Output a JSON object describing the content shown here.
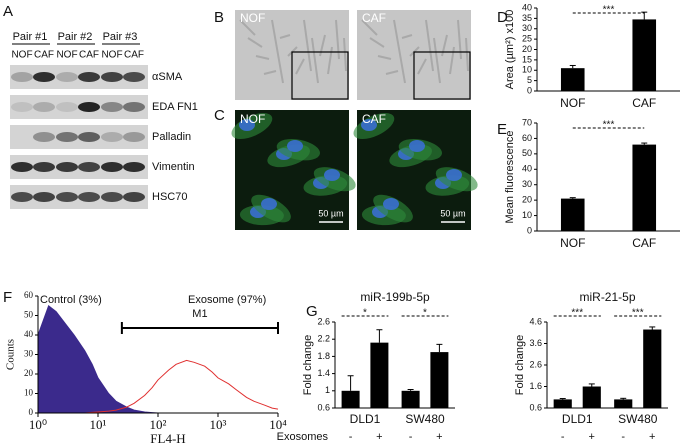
{
  "panel_labels": [
    "A",
    "B",
    "C",
    "D",
    "E",
    "F",
    "G"
  ],
  "blot": {
    "pairs": [
      "Pair #1",
      "Pair #2",
      "Pair #3"
    ],
    "lanes": [
      "NOF",
      "CAF",
      "NOF",
      "CAF",
      "NOF",
      "CAF"
    ],
    "bands": [
      "αSMA",
      "EDA FN1",
      "Palladin",
      "Vimentin",
      "HSC70"
    ]
  },
  "micrographs": {
    "bright_field": [
      "NOF",
      "CAF"
    ],
    "fluorescence": [
      "NOF",
      "CAF"
    ],
    "scale_bar": "50 µm"
  },
  "chart_data": [
    {
      "type": "bar",
      "y_label": "Area (µm²) x100",
      "categories": [
        "NOF",
        "CAF"
      ],
      "values": [
        11,
        34.5
      ],
      "errors": [
        1.3,
        3.5
      ],
      "color": "#000000",
      "ylim": [
        0,
        40
      ],
      "yticks": [
        0,
        5,
        10,
        15,
        20,
        25,
        30,
        35,
        40
      ],
      "significance": "***"
    },
    {
      "type": "bar",
      "y_label": "Mean fluorescence",
      "categories": [
        "NOF",
        "CAF"
      ],
      "values": [
        21,
        56
      ],
      "errors": [
        0.6,
        1
      ],
      "color": "#000000",
      "ylim": [
        0,
        70
      ],
      "yticks": [
        0,
        10,
        20,
        30,
        40,
        50,
        60,
        70
      ],
      "significance": "***"
    },
    {
      "type": "area",
      "x_label": "FL4-H",
      "y_label": "Counts",
      "xscale": "log",
      "x": [
        1,
        1.5,
        2,
        3,
        4,
        6,
        8,
        10,
        15,
        20,
        30,
        40,
        60,
        80,
        100,
        150,
        200,
        300,
        400,
        600,
        800,
        1000,
        1500,
        2000,
        3000,
        4000,
        6000,
        8000,
        10000
      ],
      "series": [
        {
          "name": "Control (3%)",
          "color": "#3b2a8c",
          "fill": true,
          "values": [
            40,
            55,
            52,
            45,
            40,
            32,
            25,
            18,
            10,
            6,
            3,
            1.5,
            0.5,
            0.2,
            0,
            0,
            0,
            0,
            0,
            0,
            0,
            0,
            0,
            0,
            0,
            0,
            0,
            0,
            0
          ]
        },
        {
          "name": "Exosome (97%)",
          "color": "#e03030",
          "fill": false,
          "values": [
            0,
            0,
            0,
            0,
            0,
            0,
            0.3,
            0.5,
            1,
            1.5,
            3,
            5,
            9,
            13,
            17,
            22,
            25,
            27,
            26,
            24,
            21,
            18,
            15,
            12,
            8,
            6,
            4,
            2.5,
            2
          ]
        }
      ],
      "xlim": [
        1,
        10000
      ],
      "xticks": [
        {
          "value": 1,
          "label": "10⁰"
        },
        {
          "value": 10,
          "label": "10¹"
        },
        {
          "value": 100,
          "label": "10²"
        },
        {
          "value": 1000,
          "label": "10³"
        },
        {
          "value": 10000,
          "label": "10⁴"
        }
      ],
      "ylim": [
        0,
        60
      ],
      "yticks": [
        0,
        10,
        20,
        30,
        40,
        50,
        60
      ],
      "gate": {
        "label": "M1",
        "range": [
          25,
          10000
        ]
      }
    },
    {
      "type": "grouped_bar",
      "title": "miR-199b-5p",
      "y_label": "Fold change",
      "x_row_label": "Exosomes",
      "categories": [
        "DLD1",
        "SW480"
      ],
      "series": [
        {
          "name": "-",
          "color": "#000000",
          "values": [
            1,
            1
          ],
          "errors": [
            0.35,
            0.03
          ]
        },
        {
          "name": "+",
          "color": "#000000",
          "values": [
            2.12,
            1.9
          ],
          "errors": [
            0.3,
            0.18
          ]
        }
      ],
      "ylim": [
        0.6,
        2.6
      ],
      "yticks": [
        0.6,
        1,
        1.4,
        1.8,
        2.2,
        2.6
      ],
      "significance": [
        "*",
        "*"
      ]
    },
    {
      "type": "grouped_bar",
      "title": "miR-21-5p",
      "y_label": "Fold change",
      "categories": [
        "DLD1",
        "SW480"
      ],
      "series": [
        {
          "name": "-",
          "color": "#000000",
          "values": [
            1,
            1
          ],
          "errors": [
            0.04,
            0.05
          ]
        },
        {
          "name": "+",
          "color": "#000000",
          "values": [
            1.6,
            4.25
          ],
          "errors": [
            0.12,
            0.12
          ]
        }
      ],
      "ylim": [
        0.6,
        4.6
      ],
      "yticks": [
        0.6,
        1.6,
        2.6,
        3.6,
        4.6
      ],
      "significance": [
        "***",
        "***"
      ]
    }
  ]
}
